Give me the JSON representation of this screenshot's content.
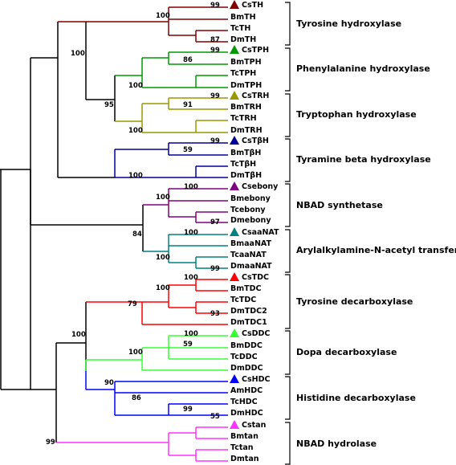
{
  "colors": {
    "TH": "#800000",
    "TPH": "#009900",
    "TRH": "#999900",
    "TBH": "#000099",
    "ebony": "#800080",
    "aaNAT": "#008080",
    "TDC": "#ff0000",
    "DDC": "#33ff33",
    "HDC": "#0000ff",
    "tan": "#ff33ff",
    "root": "#000000"
  },
  "leaves": {
    "CsTH": "CsTH",
    "BmTH": "BmTH",
    "TcTH": "TcTH",
    "DmTH": "DmTH",
    "CsTPH": "CsTPH",
    "BmTPH": "BmTPH",
    "TcTPH": "TcTPH",
    "DmTPH": "DmTPH",
    "CsTRH": "CsTRH",
    "BmTRH": "BmTRH",
    "TcTRH": "TcTRH",
    "DmTRH": "DmTRH",
    "CsTBH": "CsTβH",
    "BmTBH": "BmTβH",
    "TcTBH": "TcTβH",
    "DmTBH": "DmTβH",
    "Csebony": "Csebony",
    "Bmebony": "Bmebony",
    "Tcebony": "Tcebony",
    "Dmebony": "Dmebony",
    "CsaaNAT": "CsaaNAT",
    "BmaaNAT": "BmaaNAT",
    "TcaaNAT": "TcaaNAT",
    "DmaaNAT": "DmaaNAT",
    "CsTDC": "CsTDC",
    "BmTDC": "BmTDC",
    "TcTDC": "TcTDC",
    "DmTDC2": "DmTDC2",
    "DmTDC1": "DmTDC1",
    "CsDDC": "CsDDC",
    "BmDDC": "BmDDC",
    "TcDDC": "TcDDC",
    "DmDDC": "DmDDC",
    "CsHDC": "CsHDC",
    "AmHDC": "AmHDC",
    "TcHDC": "TcHDC",
    "DmHDC": "DmHDC",
    "Cstan": "Cstan",
    "Bmtan": "Bmtan",
    "Tctan": "Tctan",
    "Dmtan": "Dmtan"
  },
  "families": {
    "TH": "Tyrosine hydroxylase",
    "TPH": "Phenylalanine hydroxylase",
    "TRH": "Tryptophan hydroxylase",
    "TBH": "Tyramine beta hydroxylase",
    "ebony": "NBAD synthetase",
    "aaNAT": "Arylalkylamine-N-acetyl transferase",
    "TDC": "Tyrosine decarboxylase",
    "DDC": "Dopa decarboxylase",
    "HDC": "Histidine decarboxylase",
    "tan": "NBAD hydrolase"
  },
  "bootstrap": {
    "TH_top": "99",
    "TH_node": "100",
    "TH_bottom": "87",
    "TPH_top": "99",
    "TPH_sub": "86",
    "TPH_node": "100",
    "TRH_top": "99",
    "TRH_sub": "91",
    "TRH_node": "100",
    "TBH_top": "99",
    "TBH_sub": "59",
    "TBH_node": "100",
    "hydrox_upper": "100",
    "hydrox_all": "95",
    "ebony_top": "100",
    "ebony_node": "100",
    "ebony_bottom": "97",
    "aaNAT_top": "100",
    "aaNAT_node": "100",
    "aaNAT_bottom": "99",
    "ebony_aaNAT": "84",
    "TDC_top": "100",
    "TDC_node": "100",
    "TDC_bottom": "93",
    "TDC_stem": "79",
    "DDC_top": "100",
    "DDC_sub": "59",
    "DDC_node": "100",
    "HDC_node": "86",
    "HDC_sub": "99",
    "HDC_bottom": "55",
    "DDC_HDC": "90",
    "decarbox": "100",
    "lower": "99"
  }
}
